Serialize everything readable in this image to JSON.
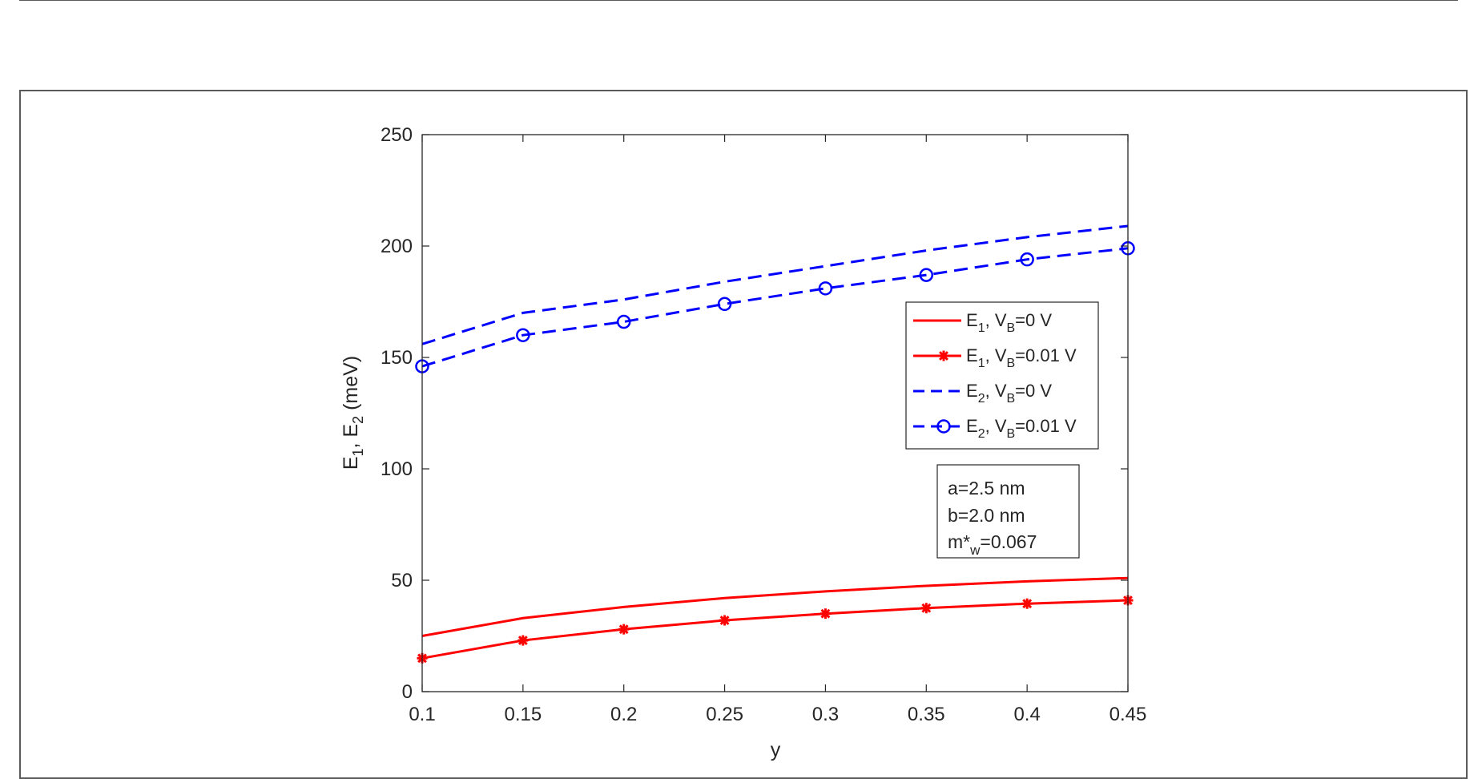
{
  "chart_data": {
    "type": "line",
    "xlabel": "y",
    "ylabel": {
      "E": "E",
      "sub1": "1",
      "sep": ", ",
      "E2": "E",
      "sub2": "2",
      "unit": " (meV)"
    },
    "xlim": [
      0.1,
      0.45
    ],
    "ylim": [
      0,
      250
    ],
    "xticks": [
      "0.1",
      "0.15",
      "0.2",
      "0.25",
      "0.3",
      "0.35",
      "0.4",
      "0.45"
    ],
    "yticks": [
      "0",
      "50",
      "100",
      "150",
      "200",
      "250"
    ],
    "x": [
      0.1,
      0.15,
      0.2,
      0.25,
      0.3,
      0.35,
      0.4,
      0.45
    ],
    "grid": false,
    "legend_position": "center-right",
    "series": [
      {
        "name": "E1, VB=0 V",
        "label": {
          "E": "E",
          "Esub": "1",
          "V": ", V",
          "Vsub": "B",
          "val": "=0 V"
        },
        "color": "#ff0000",
        "style": "solid",
        "marker": "none",
        "values": [
          25,
          33,
          38,
          42,
          45,
          47.5,
          49.5,
          51
        ]
      },
      {
        "name": "E1, VB=0.01 V",
        "label": {
          "E": "E",
          "Esub": "1",
          "V": ", V",
          "Vsub": "B",
          "val": "=0.01 V"
        },
        "color": "#ff0000",
        "style": "solid",
        "marker": "star",
        "values": [
          15,
          23,
          28,
          32,
          35,
          37.5,
          39.5,
          41
        ]
      },
      {
        "name": "E2, VB=0 V",
        "label": {
          "E": "E",
          "Esub": "2",
          "V": ", V",
          "Vsub": "B",
          "val": "=0 V"
        },
        "color": "#0000ff",
        "style": "dashed",
        "marker": "none",
        "values": [
          156,
          170,
          176,
          184,
          191,
          198,
          204,
          209
        ]
      },
      {
        "name": "E2, VB=0.01 V",
        "label": {
          "E": "E",
          "Esub": "2",
          "V": ", V",
          "Vsub": "B",
          "val": "=0.01 V"
        },
        "color": "#0000ff",
        "style": "dashed",
        "marker": "circle",
        "values": [
          146,
          160,
          166,
          174,
          181,
          187,
          194,
          199
        ]
      }
    ],
    "annotation": {
      "line1": "a=2.5 nm",
      "line2": "b=2.0 nm",
      "line3_main": "m*",
      "line3_sub": "w",
      "line3_rest": "=0.067"
    }
  }
}
